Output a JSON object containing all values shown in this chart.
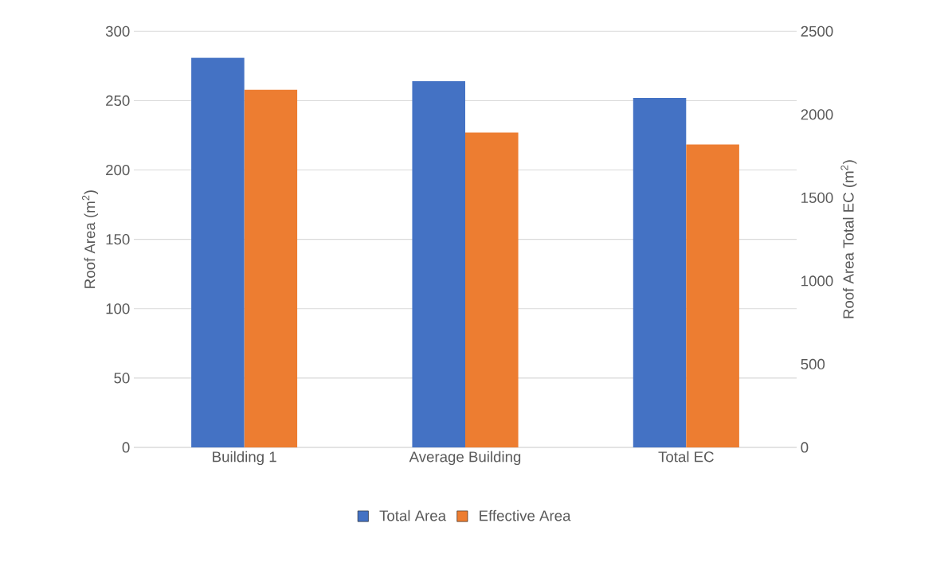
{
  "chart_data": {
    "type": "bar",
    "categories": [
      "Building 1",
      "Average Building",
      "Total EC"
    ],
    "ylabel": "Roof Area (m$^{2}$)",
    "y2label": "Roof Area Total EC (m$^{2}$)",
    "ylim": [
      0,
      300
    ],
    "yticks": [
      0,
      50,
      100,
      150,
      200,
      250,
      300
    ],
    "y2lim": [
      0,
      2500
    ],
    "y2ticks": [
      0,
      500,
      1000,
      1500,
      2000,
      2500
    ],
    "grid": "y",
    "legend": "bottom",
    "series": [
      {
        "name": "Total Area",
        "color": "#4472c4",
        "values": [
          281,
          264,
          null
        ]
      },
      {
        "name": "Effective Area",
        "color": "#ed7d31",
        "values": [
          258,
          227,
          null
        ]
      },
      {
        "color": "#4472c4",
        "axis": "y2",
        "values": [
          null,
          null,
          2100
        ]
      },
      {
        "color": "#ed7d31",
        "axis": "y2",
        "values": [
          null,
          null,
          1820
        ]
      }
    ]
  }
}
